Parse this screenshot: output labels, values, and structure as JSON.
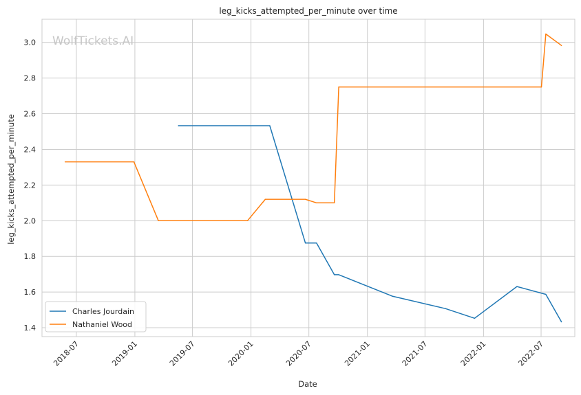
{
  "chart_data": {
    "type": "line",
    "title": "leg_kicks_attempted_per_minute over time",
    "xlabel": "Date",
    "ylabel": "leg_kicks_attempted_per_minute",
    "watermark": "WolfTickets.AI",
    "x_range": [
      "2018-03-15",
      "2022-10-15"
    ],
    "ylim": [
      1.35,
      3.13
    ],
    "x_ticks": [
      "2018-07",
      "2019-01",
      "2019-07",
      "2020-01",
      "2020-07",
      "2021-01",
      "2021-07",
      "2022-01",
      "2022-07"
    ],
    "y_ticks": [
      "1.4",
      "1.6",
      "1.8",
      "2.0",
      "2.2",
      "2.4",
      "2.6",
      "2.8",
      "3.0"
    ],
    "grid": true,
    "legend_position": "lower-left",
    "series": [
      {
        "name": "Charles Jourdain",
        "color": "#1f77b4",
        "points": [
          {
            "x": "2019-05-18",
            "y": 2.533
          },
          {
            "x": "2020-02-29",
            "y": 2.533
          },
          {
            "x": "2020-06-20",
            "y": 1.875
          },
          {
            "x": "2020-07-25",
            "y": 1.875
          },
          {
            "x": "2020-09-19",
            "y": 1.697
          },
          {
            "x": "2020-10-03",
            "y": 1.697
          },
          {
            "x": "2021-03-20",
            "y": 1.577
          },
          {
            "x": "2021-09-04",
            "y": 1.507
          },
          {
            "x": "2021-12-04",
            "y": 1.453
          },
          {
            "x": "2022-04-16",
            "y": 1.631
          },
          {
            "x": "2022-07-16",
            "y": 1.587
          },
          {
            "x": "2022-09-03",
            "y": 1.433
          }
        ]
      },
      {
        "name": "Nathaniel Wood",
        "color": "#ff7f0e",
        "points": [
          {
            "x": "2018-05-27",
            "y": 2.33
          },
          {
            "x": "2018-12-29",
            "y": 2.33
          },
          {
            "x": "2019-03-16",
            "y": 2.0
          },
          {
            "x": "2019-12-21",
            "y": 2.0
          },
          {
            "x": "2020-02-15",
            "y": 2.12
          },
          {
            "x": "2020-06-20",
            "y": 2.12
          },
          {
            "x": "2020-07-25",
            "y": 2.1
          },
          {
            "x": "2020-09-19",
            "y": 2.1
          },
          {
            "x": "2020-10-03",
            "y": 2.75
          },
          {
            "x": "2022-07-02",
            "y": 2.75
          },
          {
            "x": "2022-07-16",
            "y": 3.047
          },
          {
            "x": "2022-09-03",
            "y": 2.983
          }
        ]
      }
    ]
  }
}
